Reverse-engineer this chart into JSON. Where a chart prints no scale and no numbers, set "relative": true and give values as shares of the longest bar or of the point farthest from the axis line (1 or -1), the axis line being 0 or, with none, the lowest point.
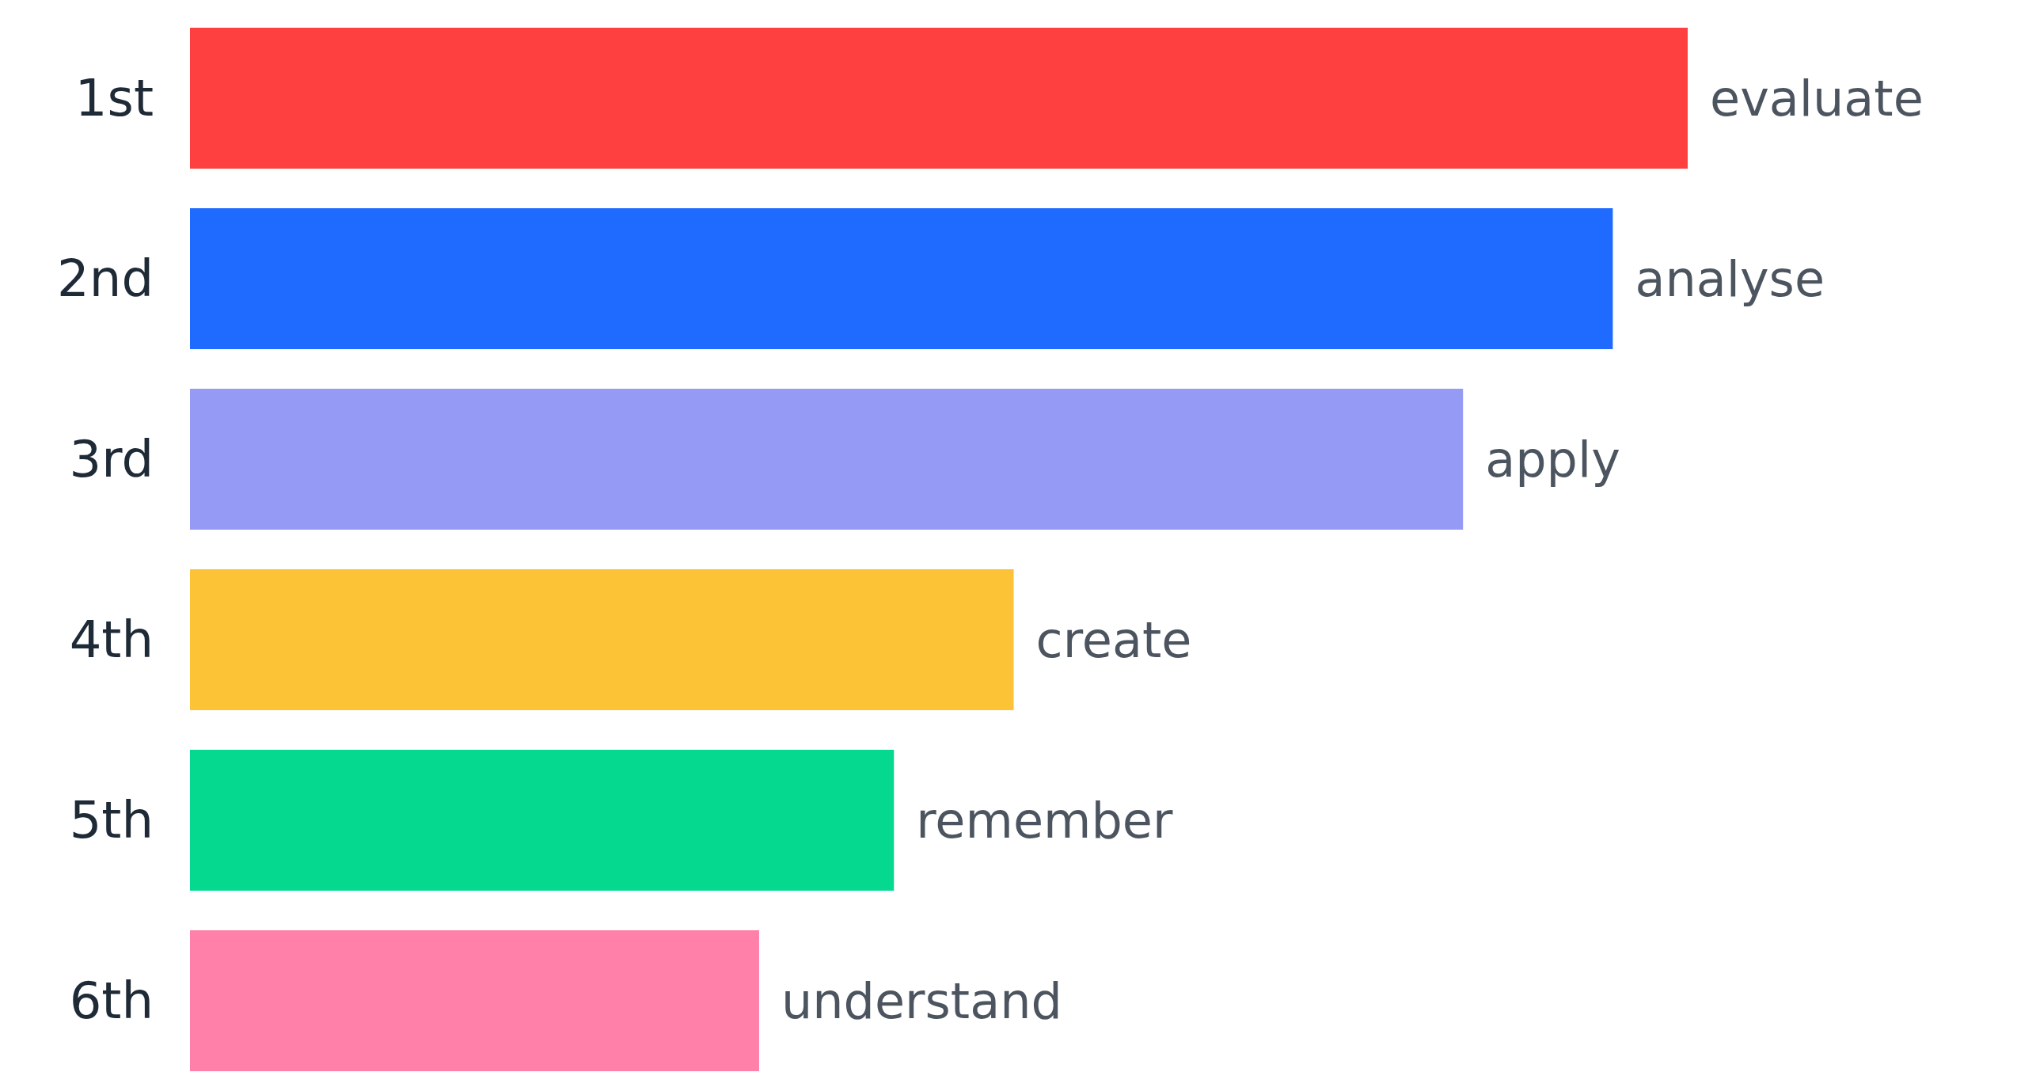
{
  "chart_data": {
    "type": "bar",
    "orientation": "horizontal",
    "relative": true,
    "categories": [
      "1st",
      "2nd",
      "3rd",
      "4th",
      "5th",
      "6th"
    ],
    "values": [
      1,
      0.95,
      0.85,
      0.55,
      0.47,
      0.38
    ],
    "colors": [
      "#ff4040",
      "#1f6bff",
      "#959af5",
      "#fdc337",
      "#04d98f",
      "#ff80a9"
    ],
    "annotations": [
      {
        "text": "evaluate",
        "x": 1,
        "y": "1st"
      },
      {
        "text": "analyse",
        "x": 0.95,
        "y": "2nd"
      },
      {
        "text": "apply",
        "x": 0.85,
        "y": "3rd"
      },
      {
        "text": "create",
        "x": 0.55,
        "y": "4th"
      },
      {
        "text": "remember",
        "x": 0.47,
        "y": "5th"
      },
      {
        "text": "understand",
        "x": 0.38,
        "y": "6th"
      }
    ],
    "tick_labels": "y"
  }
}
